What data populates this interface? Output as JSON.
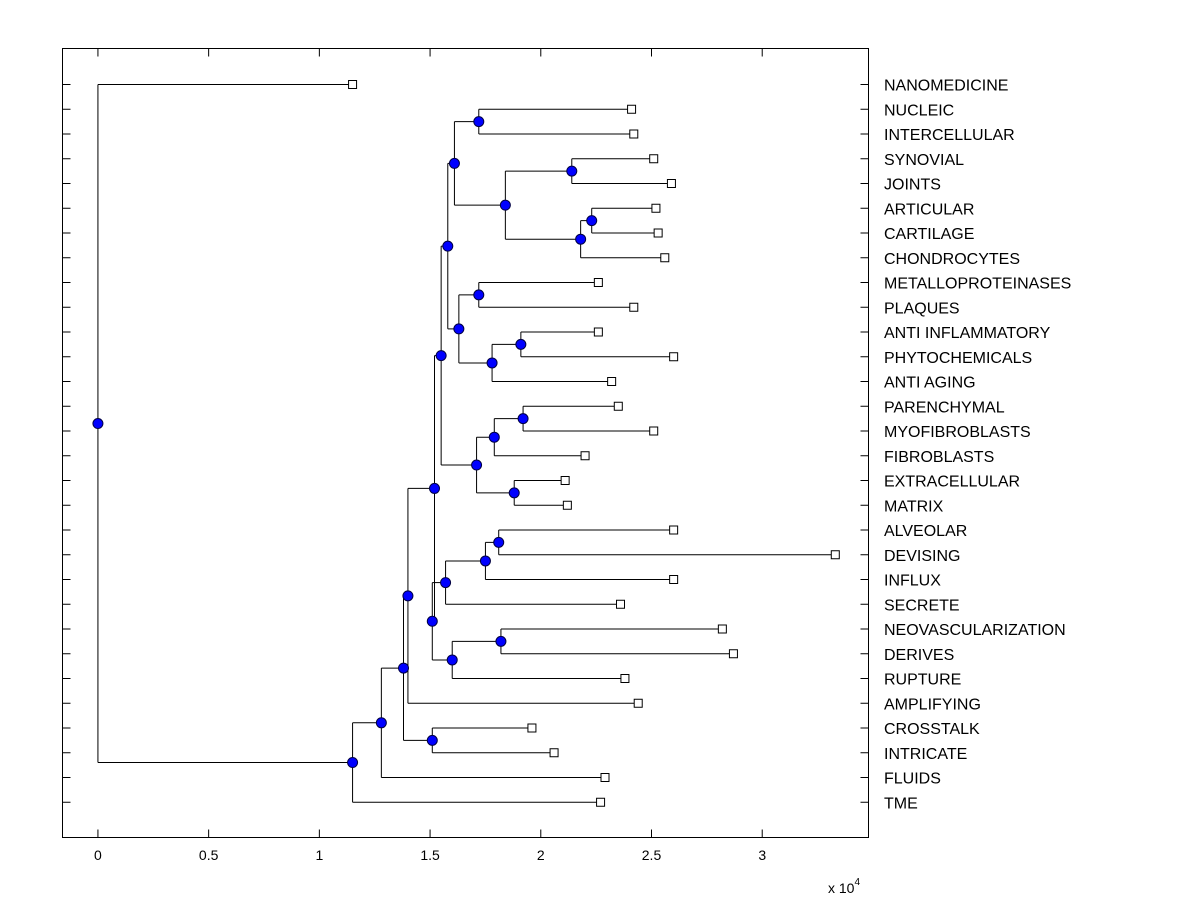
{
  "chart_data": {
    "type": "dendrogram",
    "x_ticks": [
      "0",
      "0.5",
      "1",
      "1.5",
      "2",
      "2.5",
      "3"
    ],
    "x_tick_values": [
      0,
      5000,
      10000,
      15000,
      20000,
      25000,
      30000
    ],
    "xlim": [
      -1600,
      34800
    ],
    "exponent_label": "x 10",
    "exponent_power": "4",
    "grid": false,
    "leaves": [
      {
        "label": "NANOMEDICINE",
        "x": 11500
      },
      {
        "label": "NUCLEIC",
        "x": 24100
      },
      {
        "label": "INTERCELLULAR",
        "x": 24200
      },
      {
        "label": "SYNOVIAL",
        "x": 25100
      },
      {
        "label": "JOINTS",
        "x": 25900
      },
      {
        "label": "ARTICULAR",
        "x": 25200
      },
      {
        "label": "CARTILAGE",
        "x": 25300
      },
      {
        "label": "CHONDROCYTES",
        "x": 25600
      },
      {
        "label": "METALLOPROTEINASES",
        "x": 22600
      },
      {
        "label": "PLAQUES",
        "x": 24200
      },
      {
        "label": "ANTI INFLAMMATORY",
        "x": 22600
      },
      {
        "label": "PHYTOCHEMICALS",
        "x": 26000
      },
      {
        "label": "ANTI AGING",
        "x": 23200
      },
      {
        "label": "PARENCHYMAL",
        "x": 23500
      },
      {
        "label": "MYOFIBROBLASTS",
        "x": 25100
      },
      {
        "label": "FIBROBLASTS",
        "x": 22000
      },
      {
        "label": "EXTRACELLULAR",
        "x": 21100
      },
      {
        "label": "MATRIX",
        "x": 21200
      },
      {
        "label": "ALVEOLAR",
        "x": 26000
      },
      {
        "label": "DEVISING",
        "x": 33300
      },
      {
        "label": "INFLUX",
        "x": 26000
      },
      {
        "label": "SECRETE",
        "x": 23600
      },
      {
        "label": "NEOVASCULARIZATION",
        "x": 28200
      },
      {
        "label": "DERIVES",
        "x": 28700
      },
      {
        "label": "RUPTURE",
        "x": 23800
      },
      {
        "label": "AMPLIFYING",
        "x": 24400
      },
      {
        "label": "CROSSTALK",
        "x": 19600
      },
      {
        "label": "INTRICATE",
        "x": 20600
      },
      {
        "label": "FLUIDS",
        "x": 22900
      },
      {
        "label": "TME",
        "x": 22700
      }
    ],
    "links": [
      {
        "x": 17200,
        "children": [
          {
            "leaf": 1
          },
          {
            "leaf": 2
          }
        ]
      },
      {
        "x": 22300,
        "children": [
          {
            "leaf": 5
          },
          {
            "leaf": 6
          }
        ]
      },
      {
        "x": 21800,
        "children": [
          {
            "node": 1
          },
          {
            "leaf": 7
          }
        ]
      },
      {
        "x": 21400,
        "children": [
          {
            "leaf": 3
          },
          {
            "leaf": 4
          }
        ]
      },
      {
        "x": 18400,
        "children": [
          {
            "node": 3
          },
          {
            "node": 2
          }
        ]
      },
      {
        "x": 16100,
        "children": [
          {
            "node": 0
          },
          {
            "node": 4
          }
        ]
      },
      {
        "x": 17200,
        "children": [
          {
            "leaf": 8
          },
          {
            "leaf": 9
          }
        ]
      },
      {
        "x": 19100,
        "children": [
          {
            "leaf": 10
          },
          {
            "leaf": 11
          }
        ]
      },
      {
        "x": 17800,
        "children": [
          {
            "node": 7
          },
          {
            "leaf": 12
          }
        ]
      },
      {
        "x": 16300,
        "children": [
          {
            "node": 6
          },
          {
            "node": 8
          }
        ]
      },
      {
        "x": 15800,
        "children": [
          {
            "node": 5
          },
          {
            "node": 9
          }
        ]
      },
      {
        "x": 19200,
        "children": [
          {
            "leaf": 13
          },
          {
            "leaf": 14
          }
        ]
      },
      {
        "x": 17900,
        "children": [
          {
            "node": 11
          },
          {
            "leaf": 15
          }
        ]
      },
      {
        "x": 18800,
        "children": [
          {
            "leaf": 16
          },
          {
            "leaf": 17
          }
        ]
      },
      {
        "x": 17100,
        "children": [
          {
            "node": 12
          },
          {
            "node": 13
          }
        ]
      },
      {
        "x": 15500,
        "children": [
          {
            "node": 10
          },
          {
            "node": 14
          }
        ]
      },
      {
        "x": 18100,
        "children": [
          {
            "leaf": 18
          },
          {
            "leaf": 19
          }
        ]
      },
      {
        "x": 17500,
        "children": [
          {
            "node": 16
          },
          {
            "leaf": 20
          }
        ]
      },
      {
        "x": 15700,
        "children": [
          {
            "node": 17
          },
          {
            "leaf": 21
          }
        ]
      },
      {
        "x": 18200,
        "children": [
          {
            "leaf": 22
          },
          {
            "leaf": 23
          }
        ]
      },
      {
        "x": 16000,
        "children": [
          {
            "node": 19
          },
          {
            "leaf": 24
          }
        ]
      },
      {
        "x": 15100,
        "children": [
          {
            "node": 18
          },
          {
            "node": 20
          }
        ]
      },
      {
        "x": 15200,
        "children": [
          {
            "node": 15
          },
          {
            "node": 21
          }
        ]
      },
      {
        "x": 14000,
        "children": [
          {
            "node": 22
          },
          {
            "leaf": 25
          }
        ]
      },
      {
        "x": 15100,
        "children": [
          {
            "leaf": 26
          },
          {
            "leaf": 27
          }
        ]
      },
      {
        "x": 13800,
        "children": [
          {
            "node": 23
          },
          {
            "node": 24
          }
        ]
      },
      {
        "x": 12800,
        "children": [
          {
            "node": 25
          },
          {
            "leaf": 28
          }
        ]
      },
      {
        "x": 11500,
        "children": [
          {
            "node": 26
          },
          {
            "leaf": 29
          }
        ]
      },
      {
        "x": 0,
        "children": [
          {
            "leaf": 0
          },
          {
            "node": 27
          }
        ]
      }
    ],
    "colors": {
      "node_fill": "#0000ff",
      "node_stroke": "#000044",
      "leaf_fill": "#ffffff",
      "line": "#000000",
      "background": "#ffffff"
    }
  }
}
